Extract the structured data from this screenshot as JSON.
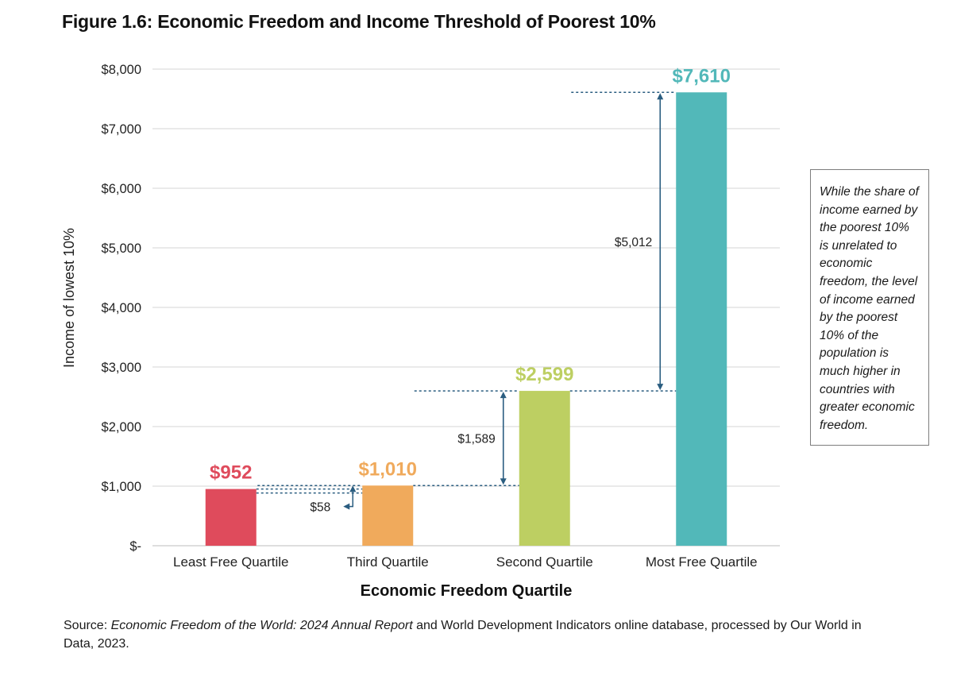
{
  "figure_title": "Figure 1.6: Economic Freedom and Income Threshold of Poorest 10%",
  "note": "While the share of income earned by the poorest 10% is unrelated to economic freedom, the level of income earned by the poorest 10% of the population is much higher in countries with greater economic freedom.",
  "source": {
    "prefix": "Source: ",
    "italic": "Economic Freedom of the World: 2024 Annual Report",
    "suffix": " and World Development Indicators online database, processed by Our World in Data, 2023."
  },
  "colors": {
    "least_free": "#df4b5c",
    "third": "#f0aa5c",
    "second": "#bdcf62",
    "most_free": "#52b8b9",
    "annotation": "#2a5d80",
    "grid": "#d5d5d5"
  },
  "chart_data": {
    "type": "bar",
    "xlabel": "Economic Freedom Quartile",
    "ylabel": "Income of lowest 10%",
    "categories": [
      "Least Free Quartile",
      "Third Quartile",
      "Second Quartile",
      "Most Free Quartile"
    ],
    "values": [
      952,
      1010,
      2599,
      7610
    ],
    "value_labels": [
      "$952",
      "$1,010",
      "$2,599",
      "$7,610"
    ],
    "bar_colors": [
      "#df4b5c",
      "#f0aa5c",
      "#bdcf62",
      "#52b8b9"
    ],
    "ylim": [
      0,
      8000
    ],
    "yticks": [
      0,
      1000,
      2000,
      3000,
      4000,
      5000,
      6000,
      7000,
      8000
    ],
    "ytick_labels": [
      "$-",
      "$1,000",
      "$2,000",
      "$3,000",
      "$4,000",
      "$5,000",
      "$6,000",
      "$7,000",
      "$8,000"
    ],
    "grid": true,
    "differences": [
      {
        "from_index": 0,
        "to_index": 1,
        "label": "$58"
      },
      {
        "from_index": 1,
        "to_index": 2,
        "label": "$1,589"
      },
      {
        "from_index": 2,
        "to_index": 3,
        "label": "$5,012"
      }
    ]
  }
}
